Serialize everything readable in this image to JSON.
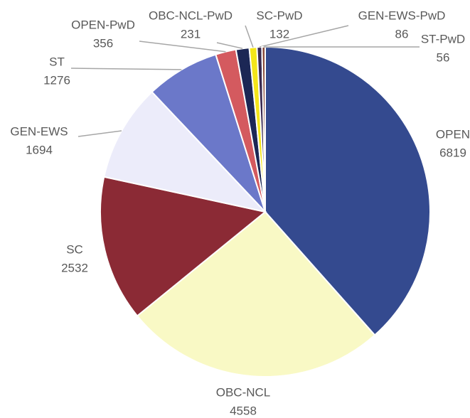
{
  "chart_data": {
    "type": "pie",
    "categories": [
      "OPEN",
      "OBC-NCL",
      "SC",
      "GEN-EWS",
      "ST",
      "OPEN-PwD",
      "OBC-NCL-PwD",
      "SC-PwD",
      "GEN-EWS-PwD",
      "ST-PwD"
    ],
    "values": [
      6819,
      4558,
      2532,
      1694,
      1276,
      356,
      231,
      132,
      86,
      56
    ],
    "colors": [
      "#344a8f",
      "#f9f9c5",
      "#8b2a35",
      "#ececfa",
      "#6b78c9",
      "#d45a5f",
      "#1c2755",
      "#f4e51a",
      "#3a2a50",
      "#8a4a3a"
    ]
  }
}
